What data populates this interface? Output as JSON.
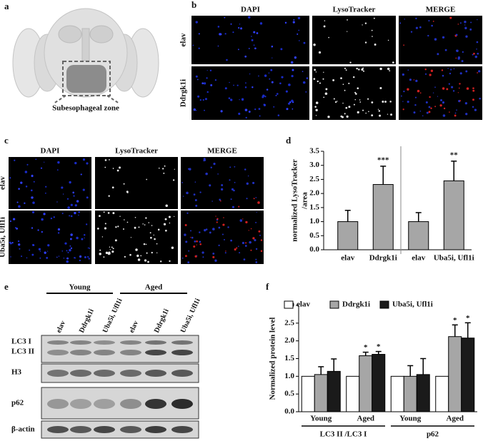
{
  "panels": {
    "a": {
      "label": "a",
      "region": "Subesophageal zone"
    },
    "b": {
      "label": "b",
      "columns": [
        "DAPI",
        "LysoTracker",
        "MERGE"
      ],
      "rows": [
        "elav",
        "Ddrgk1i"
      ]
    },
    "c": {
      "label": "c",
      "columns": [
        "DAPI",
        "LysoTracker",
        "MERGE"
      ],
      "rows": [
        "elav",
        "Uba5i, Ufl1i"
      ]
    },
    "e": {
      "label": "e",
      "groups": [
        "Young",
        "Aged"
      ],
      "lanes": [
        "elav",
        "Ddrgk1i",
        "Uba5i, Ufl1i",
        "elav",
        "Ddrgk1i",
        "Uba5i, Ufl1i"
      ],
      "blots": [
        "LC3 I",
        "LC3 II",
        "H3",
        "p62",
        "β-actin"
      ]
    }
  },
  "chart_data": [
    {
      "type": "bar",
      "panel": "d",
      "ylabel": [
        "normalized LysoTracker",
        "/area"
      ],
      "categories": [
        "elav",
        "Ddrgk1i",
        "elav",
        "Uba5i, Ufl1i"
      ],
      "values": [
        1.0,
        2.32,
        1.0,
        2.45
      ],
      "errors": [
        0.4,
        0.65,
        0.32,
        0.7
      ],
      "significance": [
        null,
        "***",
        null,
        "**"
      ],
      "color": "#a6a6a6",
      "ylim": [
        0,
        3.5
      ],
      "yticks": [
        {
          "value": 0,
          "label": "0.0"
        },
        {
          "value": 0.5,
          "label": "0.5"
        },
        {
          "value": 1,
          "label": "1.0"
        },
        {
          "value": 1.5,
          "label": "1.5"
        },
        {
          "value": 2,
          "label": "2.0"
        },
        {
          "value": 2.5,
          "label": "2.5"
        },
        {
          "value": 3,
          "label": "3.0"
        },
        {
          "value": 3.5,
          "label": "3.5"
        }
      ]
    },
    {
      "type": "grouped_bar",
      "panel": "f",
      "ylabel": "Normalized  protein level",
      "categories": [
        "Young",
        "Aged",
        "Young",
        "Aged"
      ],
      "groups": [
        "LC3 II /LC3 I",
        "p62"
      ],
      "series": [
        {
          "name": "elav",
          "color": "#ffffff",
          "values": [
            1.0,
            1.0,
            1.0,
            1.0
          ]
        },
        {
          "name": "Ddrgk1i",
          "color": "#a6a6a6",
          "values": [
            1.05,
            1.58,
            1.0,
            2.12
          ],
          "errors": [
            0.22,
            0.1,
            0.3,
            0.33
          ],
          "significance": [
            null,
            "*",
            null,
            "*"
          ]
        },
        {
          "name": "Uba5i, Ufl1i",
          "color": "#1a1a1a",
          "values": [
            1.14,
            1.62,
            1.05,
            2.08
          ],
          "errors": [
            0.35,
            0.08,
            0.45,
            0.43
          ],
          "significance": [
            null,
            "*",
            null,
            "*"
          ]
        }
      ],
      "ylim": [
        0,
        3
      ],
      "yticks": [
        {
          "value": 0,
          "label": "0.0"
        },
        {
          "value": 0.5,
          "label": "0.5"
        },
        {
          "value": 1,
          "label": "1.0"
        },
        {
          "value": 1.5,
          "label": "1.5"
        },
        {
          "value": 2,
          "label": "2.0"
        },
        {
          "value": 2.5,
          "label": "2.5"
        },
        {
          "value": 3,
          "label": "3.0"
        }
      ]
    }
  ]
}
